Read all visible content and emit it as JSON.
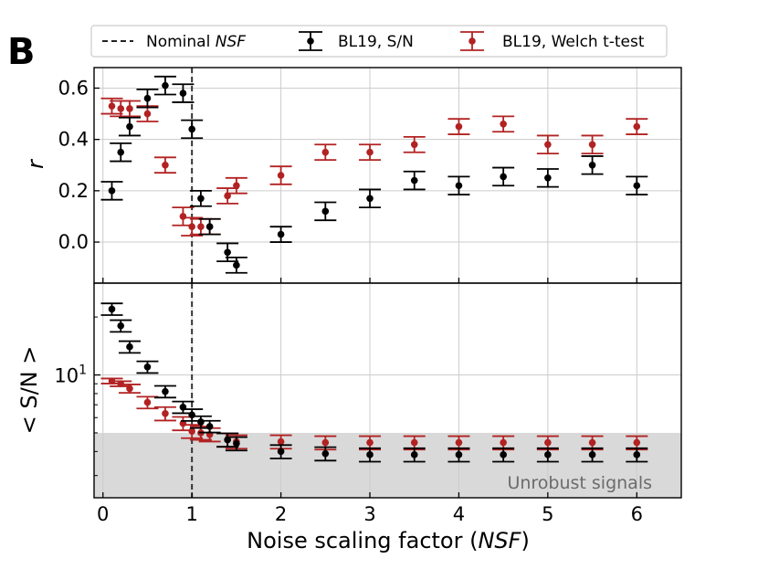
{
  "panel_label": "B",
  "legend": {
    "nominal": {
      "prefix": "Nominal ",
      "italic": "NSF"
    },
    "sn": "BL19, S/N",
    "welch": "BL19, Welch t-test"
  },
  "colors": {
    "sn": "#000000",
    "welch": "#b22222",
    "shade": "#d9d9d9",
    "grid": "#cccccc",
    "nominal_line": "#333333"
  },
  "chart_data": [
    {
      "type": "scatter",
      "panel": "top",
      "ylabel": "r",
      "xlim": [
        -0.1,
        6.5
      ],
      "ylim": [
        -0.16,
        0.68
      ],
      "yticks": [
        0.0,
        0.2,
        0.4,
        0.6
      ],
      "ytick_labels": [
        "0.0",
        "0.2",
        "0.4",
        "0.6"
      ],
      "grid": true,
      "nominal_nsf": 1,
      "series": [
        {
          "name": "BL19, S/N",
          "x": [
            0.1,
            0.2,
            0.3,
            0.5,
            0.7,
            0.9,
            1.0,
            1.1,
            1.2,
            1.4,
            1.5,
            2.0,
            2.5,
            3.0,
            3.5,
            4.0,
            4.5,
            5.0,
            5.5,
            6.0
          ],
          "y": [
            0.2,
            0.35,
            0.45,
            0.56,
            0.61,
            0.58,
            0.44,
            0.17,
            0.06,
            -0.04,
            -0.09,
            0.03,
            0.12,
            0.17,
            0.24,
            0.22,
            0.255,
            0.25,
            0.3,
            0.22
          ],
          "err": [
            0.035,
            0.035,
            0.035,
            0.035,
            0.035,
            0.035,
            0.035,
            0.03,
            0.03,
            0.035,
            0.03,
            0.03,
            0.035,
            0.035,
            0.035,
            0.035,
            0.035,
            0.035,
            0.035,
            0.035
          ]
        },
        {
          "name": "BL19, Welch t-test",
          "x": [
            0.1,
            0.2,
            0.3,
            0.5,
            0.7,
            0.9,
            1.0,
            1.1,
            1.2,
            1.4,
            1.5,
            2.0,
            2.5,
            3.0,
            3.5,
            4.0,
            4.5,
            5.0,
            5.5,
            6.0
          ],
          "y": [
            0.53,
            0.52,
            0.52,
            0.5,
            0.3,
            0.1,
            0.06,
            0.06,
            0.06,
            0.18,
            0.22,
            0.26,
            0.35,
            0.35,
            0.38,
            0.45,
            0.46,
            0.38,
            0.38,
            0.45
          ],
          "err": [
            0.03,
            0.03,
            0.03,
            0.03,
            0.03,
            0.035,
            0.035,
            0.03,
            0.03,
            0.03,
            0.03,
            0.035,
            0.03,
            0.03,
            0.03,
            0.03,
            0.03,
            0.035,
            0.035,
            0.03
          ]
        }
      ]
    },
    {
      "type": "scatter",
      "panel": "bottom",
      "ylabel": "< S/N >",
      "yscale": "log",
      "xlim": [
        -0.1,
        6.5
      ],
      "ylim": [
        2.3,
        30
      ],
      "ytick_label": {
        "base": "10",
        "exponent": "1"
      },
      "xlabel": {
        "prefix": "Noise scaling factor (",
        "italic": "NSF",
        "suffix": ")"
      },
      "xticks": [
        0,
        1,
        2,
        3,
        4,
        5,
        6
      ],
      "xtick_labels": [
        "0",
        "1",
        "2",
        "3",
        "4",
        "5",
        "6"
      ],
      "grid": true,
      "nominal_nsf": 1,
      "unrobust_region": {
        "label": "Unrobust signals",
        "ymax": 5
      },
      "series": [
        {
          "name": "BL19, S/N",
          "x": [
            0.1,
            0.2,
            0.3,
            0.5,
            0.7,
            0.9,
            1.0,
            1.1,
            1.2,
            1.4,
            1.5,
            2.0,
            2.5,
            3.0,
            3.5,
            4.0,
            4.5,
            5.0,
            5.5,
            6.0
          ],
          "y": [
            22,
            18,
            14,
            11,
            8.2,
            6.8,
            6.2,
            5.7,
            5.4,
            4.6,
            4.4,
            4.0,
            3.9,
            3.85,
            3.85,
            3.85,
            3.85,
            3.85,
            3.85,
            3.85
          ],
          "err_frac": [
            0.07,
            0.07,
            0.07,
            0.07,
            0.07,
            0.07,
            0.07,
            0.07,
            0.07,
            0.08,
            0.08,
            0.08,
            0.08,
            0.08,
            0.08,
            0.08,
            0.08,
            0.08,
            0.08,
            0.08
          ]
        },
        {
          "name": "BL19, Welch t-test",
          "x": [
            0.1,
            0.2,
            0.3,
            0.5,
            0.7,
            0.9,
            1.0,
            1.1,
            1.2,
            1.4,
            1.5,
            2.0,
            2.5,
            3.0,
            3.5,
            4.0,
            4.5,
            5.0,
            5.5,
            6.0
          ],
          "y": [
            9.3,
            9.0,
            8.5,
            7.2,
            6.3,
            5.6,
            5.1,
            5.0,
            4.9,
            4.6,
            4.5,
            4.5,
            4.45,
            4.45,
            4.45,
            4.45,
            4.45,
            4.45,
            4.45,
            4.45
          ],
          "err_frac": [
            0.03,
            0.03,
            0.05,
            0.07,
            0.08,
            0.08,
            0.08,
            0.08,
            0.08,
            0.08,
            0.08,
            0.08,
            0.08,
            0.08,
            0.08,
            0.08,
            0.08,
            0.08,
            0.08,
            0.08
          ]
        }
      ]
    }
  ]
}
